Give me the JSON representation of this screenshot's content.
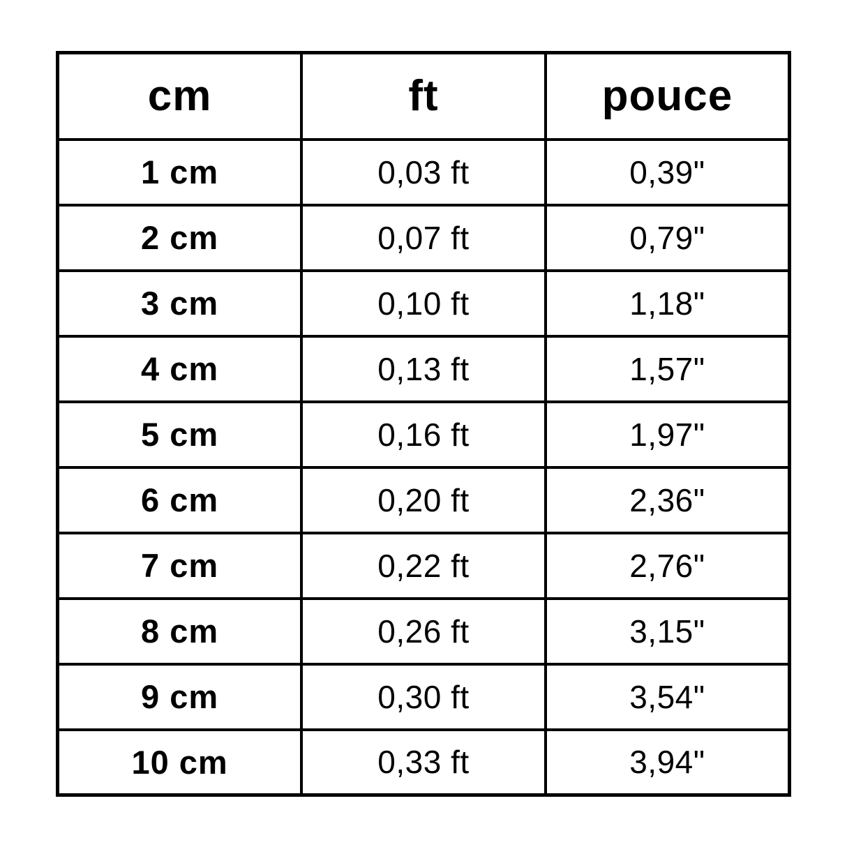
{
  "colors": {
    "background": "#ffffff",
    "grid_line": "#000000",
    "text": "#000000"
  },
  "table": {
    "headers": [
      "cm",
      "ft",
      "pouce"
    ],
    "rows": [
      [
        "1 cm",
        "0,03 ft",
        "0,39\""
      ],
      [
        "2 cm",
        "0,07 ft",
        "0,79\""
      ],
      [
        "3 cm",
        "0,10 ft",
        "1,18\""
      ],
      [
        "4 cm",
        "0,13 ft",
        "1,57\""
      ],
      [
        "5 cm",
        "0,16 ft",
        "1,97\""
      ],
      [
        "6 cm",
        "0,20 ft",
        "2,36\""
      ],
      [
        "7 cm",
        "0,22 ft",
        "2,76\""
      ],
      [
        "8 cm",
        "0,26 ft",
        "3,15\""
      ],
      [
        "9 cm",
        "0,30 ft",
        "3,54\""
      ],
      [
        "10 cm",
        "0,33 ft",
        "3,94\""
      ]
    ]
  },
  "chart_data": {
    "type": "table",
    "title": "",
    "columns": [
      "cm",
      "ft",
      "pouce"
    ],
    "categories": [
      1,
      2,
      3,
      4,
      5,
      6,
      7,
      8,
      9,
      10
    ],
    "series": [
      {
        "name": "ft",
        "values": [
          0.03,
          0.07,
          0.1,
          0.13,
          0.16,
          0.2,
          0.22,
          0.26,
          0.3,
          0.33
        ]
      },
      {
        "name": "pouce",
        "values": [
          0.39,
          0.79,
          1.18,
          1.57,
          1.97,
          2.36,
          2.76,
          3.15,
          3.54,
          3.94
        ]
      }
    ],
    "decimal_separator": ","
  }
}
